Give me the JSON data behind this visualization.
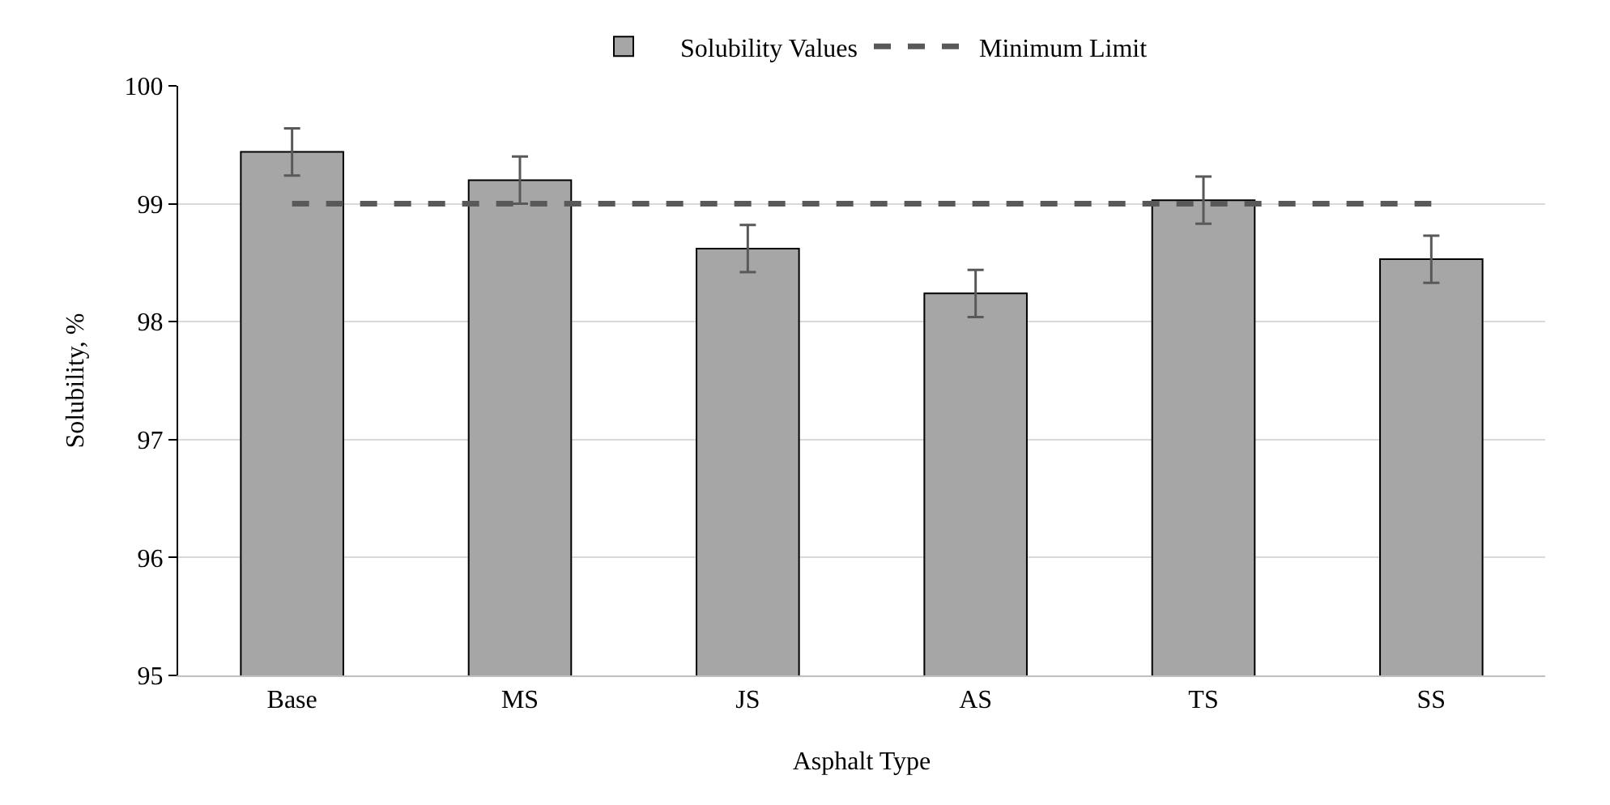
{
  "chart_data": {
    "type": "bar",
    "xlabel": "Asphalt Type",
    "ylabel": "Solubility, %",
    "categories": [
      "Base",
      "MS",
      "JS",
      "AS",
      "TS",
      "SS"
    ],
    "series": [
      {
        "name": "Solubility Values",
        "color": "#a6a6a6",
        "values": [
          99.44,
          99.2,
          98.62,
          98.24,
          99.03,
          98.53
        ],
        "errors": [
          0.2,
          0.2,
          0.2,
          0.2,
          0.2,
          0.2
        ]
      },
      {
        "name": "Minimum Limit",
        "type": "line",
        "color": "#595959",
        "line_style": "dashed",
        "marker": "none",
        "values": [
          99,
          99,
          99,
          99,
          99,
          99
        ]
      }
    ],
    "ylim": [
      95,
      100
    ],
    "yticks": [
      95,
      96,
      97,
      98,
      99,
      100
    ],
    "grid": "y",
    "legend": "top"
  }
}
